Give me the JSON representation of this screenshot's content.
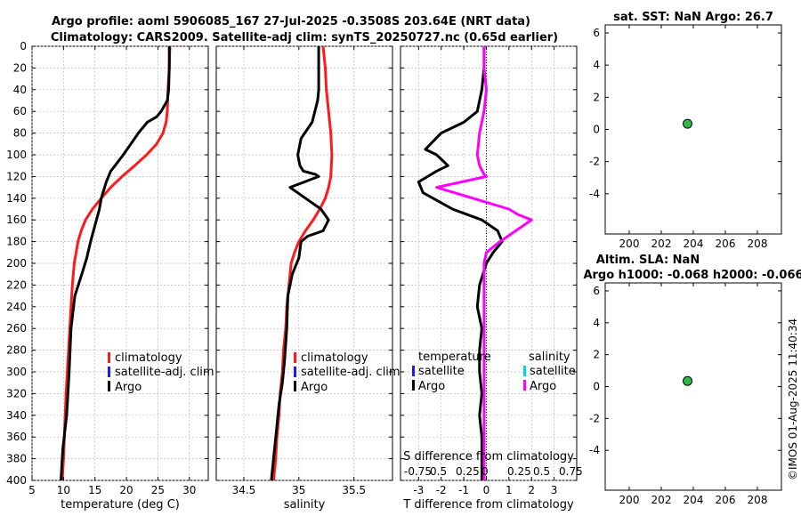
{
  "title": {
    "line1": "Argo profile: aoml 5906085_167 27-Jul-2025 -0.3508S 203.64E (NRT data)",
    "line2": "Climatology: CARS2009. Satellite-adj clim: synTS_20250727.nc (0.65d earlier)"
  },
  "timestamp": "©IMOS 01-Aug-2025 11:40:34",
  "colors": {
    "climatology": "#ff1a1a",
    "satellite": "#1a1aff",
    "argo": "#000000",
    "salinity_argo": "#ff00ff",
    "salinity_satellite": "#00d8e0",
    "marker_fill": "#2fb84a"
  },
  "chart_data": [
    {
      "id": "temperature",
      "type": "line",
      "xlabel": "temperature (deg C)",
      "xlim": [
        5,
        33
      ],
      "xticks": [
        5,
        10,
        15,
        20,
        25,
        30
      ],
      "xtick_labels": [
        "5",
        "10",
        "15",
        "20",
        "25",
        "30"
      ],
      "ylim": [
        0,
        400
      ],
      "yticks": [
        0,
        20,
        40,
        60,
        80,
        100,
        120,
        140,
        160,
        180,
        200,
        220,
        240,
        260,
        280,
        300,
        320,
        340,
        360,
        380,
        400
      ],
      "ytick_labels": [
        "0",
        "20",
        "40",
        "60",
        "80",
        "100",
        "120",
        "140",
        "160",
        "180",
        "200",
        "220",
        "240",
        "260",
        "280",
        "300",
        "320",
        "340",
        "360",
        "380",
        "400"
      ],
      "legend": [
        "climatology",
        "satellite-adj. clim",
        "Argo"
      ],
      "series": [
        {
          "name": "climatology",
          "color": "#ff1a1a",
          "x": [
            26.9,
            26.8,
            26.6,
            26.5,
            26.3,
            25.8,
            24.8,
            23.2,
            21.3,
            19.3,
            17.5,
            16.0,
            14.6,
            13.5,
            12.8,
            12.3,
            12.0,
            11.7,
            11.4,
            11.2,
            11.0,
            10.8,
            10.6,
            10.4,
            10.2,
            10.0,
            9.8
          ],
          "y": [
            0,
            20,
            40,
            60,
            70,
            80,
            90,
            100,
            110,
            120,
            130,
            140,
            150,
            160,
            170,
            180,
            190,
            200,
            220,
            240,
            260,
            280,
            300,
            320,
            350,
            380,
            400
          ]
        },
        {
          "name": "Argo",
          "color": "#000000",
          "x": [
            26.8,
            26.8,
            26.7,
            26.5,
            26.0,
            25.5,
            24.8,
            23.3,
            21.9,
            20.7,
            19.5,
            18.2,
            17.5,
            16.8,
            16.0,
            15.7,
            15.0,
            14.3,
            13.7,
            12.9,
            11.8,
            11.2,
            10.9,
            10.7,
            10.5,
            10.3,
            10.1,
            9.9,
            9.8,
            9.7,
            9.6
          ],
          "y": [
            0,
            20,
            40,
            50,
            55,
            60,
            65,
            70,
            80,
            90,
            100,
            110,
            115,
            125,
            140,
            150,
            165,
            180,
            195,
            210,
            230,
            260,
            300,
            320,
            340,
            350,
            360,
            370,
            380,
            390,
            400
          ]
        }
      ]
    },
    {
      "id": "salinity",
      "type": "line",
      "xlabel": "salinity",
      "xlim": [
        34.25,
        35.85
      ],
      "xticks": [
        34.5,
        35,
        35.5
      ],
      "xtick_labels": [
        "34.5",
        "35",
        "35.5"
      ],
      "ylim": [
        0,
        400
      ],
      "legend": [
        "climatology",
        "satellite-adj. clim",
        "Argo"
      ],
      "series": [
        {
          "name": "climatology",
          "color": "#ff1a1a",
          "x": [
            35.22,
            35.24,
            35.25,
            35.27,
            35.29,
            35.3,
            35.29,
            35.27,
            35.24,
            35.19,
            35.13,
            35.06,
            35.0,
            34.96,
            34.93,
            34.91,
            34.89,
            34.88,
            34.86,
            34.85,
            34.83,
            34.82,
            34.8,
            34.79,
            34.77
          ],
          "y": [
            0,
            20,
            40,
            60,
            80,
            100,
            120,
            130,
            140,
            150,
            160,
            170,
            180,
            190,
            200,
            220,
            240,
            260,
            280,
            300,
            320,
            340,
            360,
            380,
            400
          ]
        },
        {
          "name": "Argo",
          "color": "#000000",
          "x": [
            35.18,
            35.18,
            35.18,
            35.17,
            35.12,
            35.02,
            34.99,
            35.01,
            35.04,
            35.15,
            35.18,
            35.0,
            34.92,
            35.06,
            35.2,
            35.27,
            35.22,
            35.08,
            35.02,
            35.0,
            34.94,
            34.9,
            34.89,
            34.87,
            34.85,
            34.82,
            34.8,
            34.78,
            34.76,
            34.75
          ],
          "y": [
            0,
            20,
            40,
            50,
            70,
            85,
            100,
            110,
            115,
            118,
            120,
            127,
            130,
            140,
            150,
            160,
            170,
            175,
            180,
            195,
            210,
            230,
            260,
            290,
            310,
            330,
            350,
            370,
            390,
            400
          ]
        }
      ]
    },
    {
      "id": "difference",
      "type": "line",
      "xlabel": "T difference from climatology",
      "xlabel_top": "S difference from climatology",
      "xlim": [
        -3.8,
        4.0
      ],
      "xticks": [
        -3,
        -2,
        -1,
        0,
        1,
        2,
        3
      ],
      "xtick_labels": [
        "-3",
        "-2",
        "-1",
        "0",
        "1",
        "2",
        "3"
      ],
      "top_tick_labels": [
        "-0.75",
        "0.5",
        "0.25",
        "0",
        "0.25",
        "0.5",
        "0.75"
      ],
      "ylim": [
        0,
        400
      ],
      "legend_headers": [
        "temperature",
        "salinity"
      ],
      "legend_left": [
        "satellite",
        "Argo"
      ],
      "legend_right": [
        "satellite",
        "Argo"
      ],
      "series": [
        {
          "name": "temperature Argo",
          "color": "#000000",
          "x": [
            -0.1,
            -0.1,
            -0.2,
            -0.4,
            -1.0,
            -2.0,
            -2.7,
            -2.2,
            -1.7,
            -2.2,
            -2.6,
            -3.0,
            -2.8,
            -1.5,
            -0.2,
            0.5,
            0.7,
            0.3,
            0.0,
            -0.3,
            -0.4,
            -0.2,
            -0.3,
            -0.3,
            -0.2,
            -0.3,
            -0.2,
            -0.2,
            -0.2,
            -0.2
          ],
          "y": [
            0,
            20,
            40,
            60,
            70,
            80,
            95,
            100,
            110,
            115,
            120,
            125,
            135,
            150,
            160,
            170,
            180,
            190,
            200,
            220,
            240,
            260,
            280,
            300,
            320,
            340,
            360,
            380,
            390,
            400
          ]
        },
        {
          "name": "salinity Argo",
          "color": "#ff00ff",
          "x": [
            -0.1,
            -0.1,
            0.0,
            -0.1,
            -0.3,
            -0.4,
            -0.3,
            -0.1,
            0.0,
            -2.2,
            -0.6,
            1.0,
            1.4,
            2.0,
            1.3,
            0.6,
            0.0,
            -0.1,
            -0.1,
            -0.1,
            -0.1,
            -0.1,
            -0.1,
            -0.1,
            -0.1,
            -0.1
          ],
          "y": [
            0,
            20,
            40,
            60,
            80,
            100,
            110,
            118,
            120,
            130,
            140,
            150,
            155,
            160,
            170,
            180,
            190,
            200,
            220,
            250,
            280,
            310,
            340,
            370,
            390,
            400
          ]
        }
      ]
    },
    {
      "id": "sst",
      "type": "scatter",
      "title": "sat. SST: NaN Argo: 26.7",
      "xlim": [
        198.5,
        209.5
      ],
      "xticks": [
        200,
        202,
        204,
        206,
        208
      ],
      "xtick_labels": [
        "200",
        "202",
        "204",
        "206",
        "208"
      ],
      "ylim": [
        -6.5,
        6.5
      ],
      "yticks": [
        -4,
        -2,
        0,
        2,
        4,
        6
      ],
      "ytick_labels": [
        "-4",
        "-2",
        "0",
        "2",
        "4",
        "6"
      ],
      "points": [
        {
          "x": 203.64,
          "y": 0.35
        }
      ]
    },
    {
      "id": "sla",
      "type": "scatter",
      "title": "Altim. SLA: NaN",
      "subtitle": "Argo h1000: -0.068 h2000: -0.066",
      "xlim": [
        198.5,
        209.5
      ],
      "xticks": [
        200,
        202,
        204,
        206,
        208
      ],
      "xtick_labels": [
        "200",
        "202",
        "204",
        "206",
        "208"
      ],
      "ylim": [
        -6.5,
        6.5
      ],
      "yticks": [
        -4,
        -2,
        0,
        2,
        4,
        6
      ],
      "ytick_labels": [
        "-4",
        "-2",
        "0",
        "2",
        "4",
        "6"
      ],
      "points": [
        {
          "x": 203.64,
          "y": 0.35
        }
      ]
    }
  ]
}
